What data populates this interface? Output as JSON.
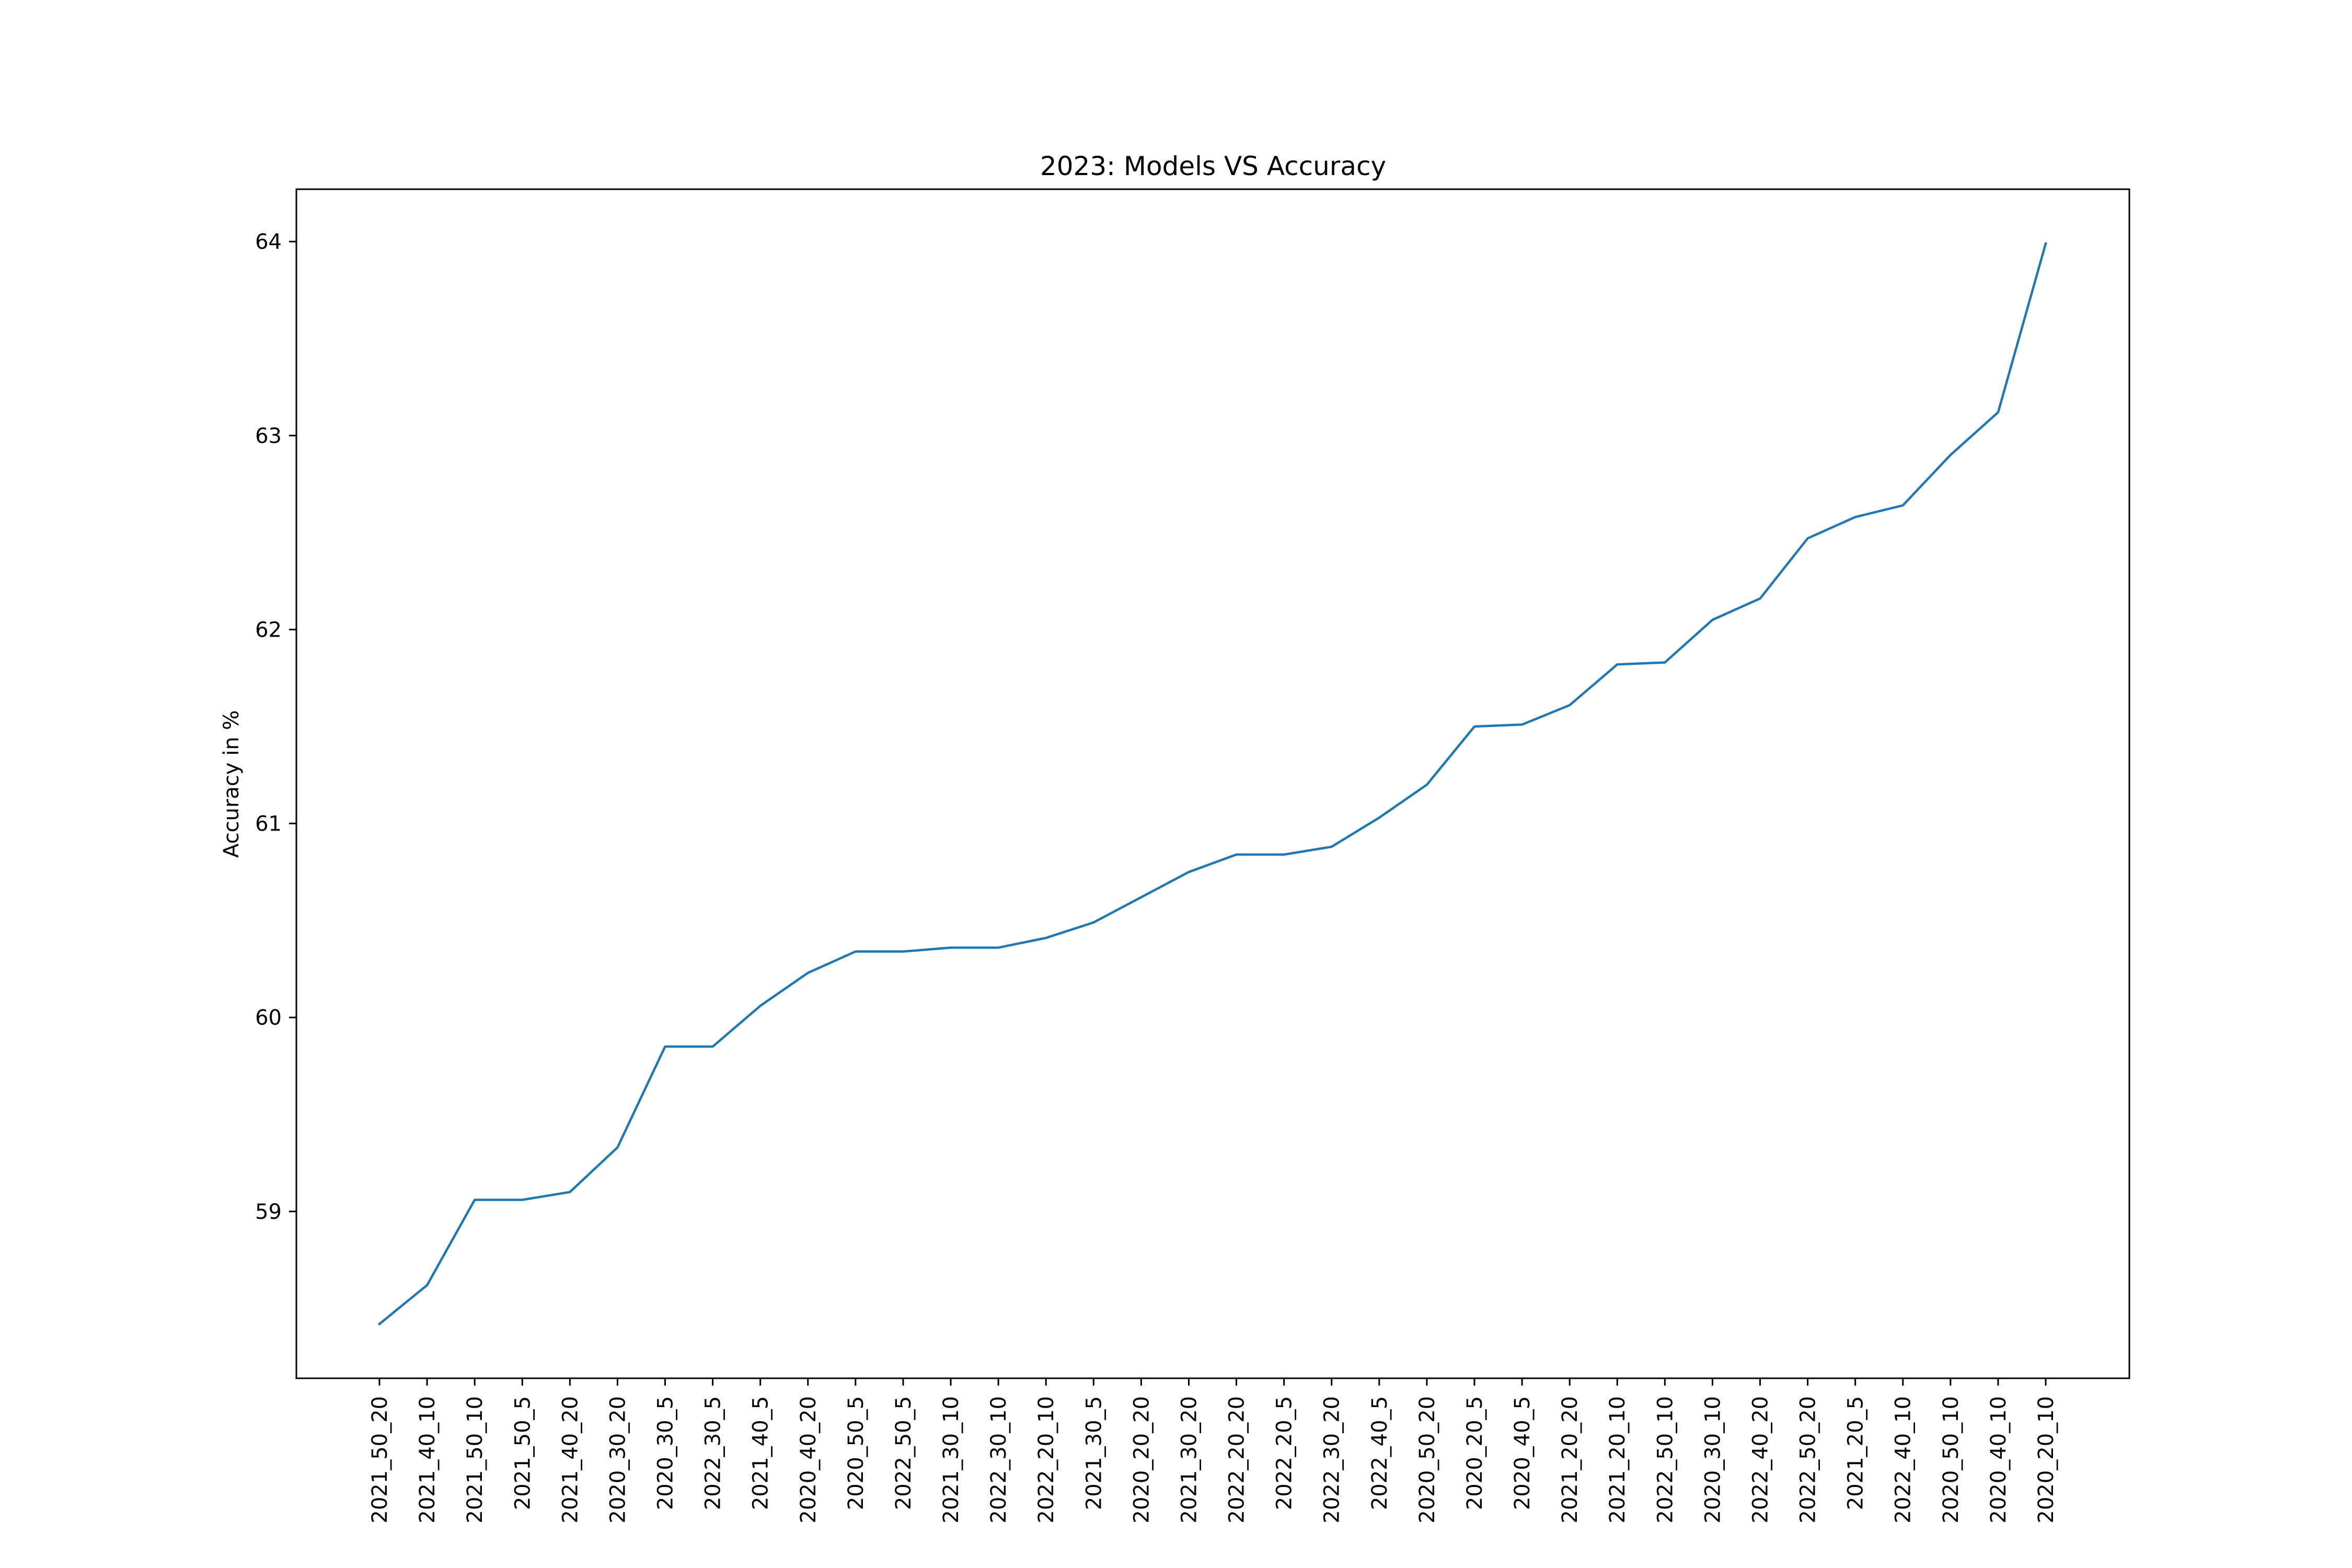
{
  "chart_data": {
    "type": "line",
    "title": "2023: Models VS Accuracy",
    "xlabel": "",
    "ylabel": "Accuracy in %",
    "categories": [
      "2021_50_20",
      "2021_40_10",
      "2021_50_10",
      "2021_50_5",
      "2021_40_20",
      "2020_30_20",
      "2020_30_5",
      "2022_30_5",
      "2021_40_5",
      "2020_40_20",
      "2020_50_5",
      "2022_50_5",
      "2021_30_10",
      "2022_30_10",
      "2022_20_10",
      "2021_30_5",
      "2020_20_20",
      "2021_30_20",
      "2022_20_20",
      "2022_20_5",
      "2022_30_20",
      "2022_40_5",
      "2020_50_20",
      "2020_20_5",
      "2020_40_5",
      "2021_20_20",
      "2021_20_10",
      "2022_50_10",
      "2020_30_10",
      "2022_40_20",
      "2022_50_20",
      "2021_20_5",
      "2022_40_10",
      "2020_50_10",
      "2020_40_10",
      "2020_20_10"
    ],
    "series": [
      {
        "values": [
          58.42,
          58.62,
          59.06,
          59.06,
          59.1,
          59.33,
          59.85,
          59.85,
          60.06,
          60.23,
          60.34,
          60.34,
          60.36,
          60.36,
          60.41,
          60.49,
          60.62,
          60.75,
          60.84,
          60.84,
          60.88,
          61.03,
          61.2,
          61.5,
          61.51,
          61.61,
          61.82,
          61.83,
          62.05,
          62.16,
          62.47,
          62.58,
          62.64,
          62.9,
          63.12,
          63.99
        ],
        "color": "#1f77b4"
      }
    ],
    "yticks": [
      59,
      60,
      61,
      62,
      63,
      64
    ],
    "ylim": [
      58.14,
      64.27
    ],
    "grid": false,
    "legend": "none"
  }
}
